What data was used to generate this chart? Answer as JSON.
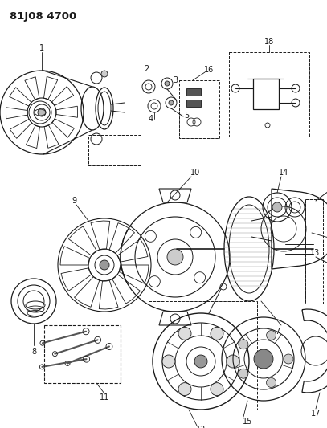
{
  "title": "81J08 4700",
  "bg_color": "#ffffff",
  "line_color": "#1a1a1a",
  "fig_w": 4.07,
  "fig_h": 5.33,
  "dpi": 100
}
